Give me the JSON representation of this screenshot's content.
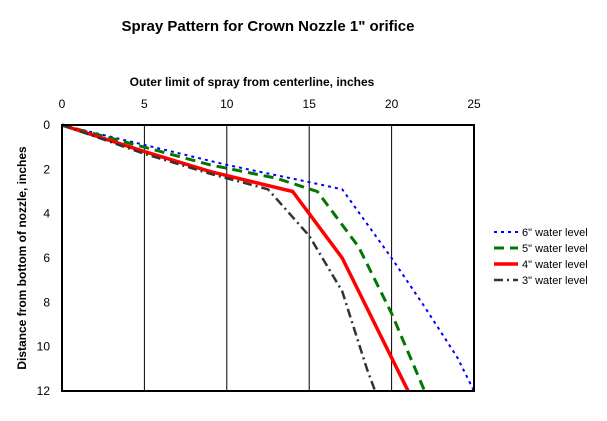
{
  "chart_data": {
    "type": "line",
    "title": "Spray Pattern for Crown Nozzle 1\" orifice",
    "xlabel": "Outer limit of spray from centerline, inches",
    "ylabel": "Distance from bottom of nozzle, inches",
    "xlim": [
      0,
      25
    ],
    "ylim": [
      0,
      12
    ],
    "y_inverted": true,
    "x_axis_position": "top",
    "grid": "vertical",
    "x_ticks": [
      "0",
      "5",
      "10",
      "15",
      "20",
      "25"
    ],
    "y_ticks": [
      "0",
      "2",
      "4",
      "6",
      "8",
      "10",
      "12"
    ],
    "legend_position": "right",
    "series": [
      {
        "name": "6\" water level",
        "color": "#0000ff",
        "dash": "dotted",
        "points": [
          [
            0,
            0
          ],
          [
            5,
            0.9
          ],
          [
            10,
            1.8
          ],
          [
            14.5,
            2.5
          ],
          [
            17,
            2.9
          ],
          [
            20,
            6
          ],
          [
            22,
            8.2
          ],
          [
            24,
            10.5
          ],
          [
            25,
            12
          ]
        ]
      },
      {
        "name": "5\" water level",
        "color": "#007700",
        "dash": "dashed",
        "points": [
          [
            0,
            0
          ],
          [
            5,
            1.0
          ],
          [
            9,
            1.8
          ],
          [
            13,
            2.4
          ],
          [
            15.5,
            3.0
          ],
          [
            18,
            5.5
          ],
          [
            20,
            8.5
          ],
          [
            22,
            12
          ]
        ]
      },
      {
        "name": "4\" water level",
        "color": "#ff0000",
        "dash": "solid",
        "points": [
          [
            0,
            0
          ],
          [
            5,
            1.2
          ],
          [
            9,
            2.1
          ],
          [
            14,
            3.0
          ],
          [
            15,
            4.0
          ],
          [
            17,
            6.0
          ],
          [
            19,
            9.0
          ],
          [
            21,
            12
          ]
        ]
      },
      {
        "name": "3\" water level",
        "color": "#333333",
        "dash": "dashdot",
        "points": [
          [
            0,
            0
          ],
          [
            5,
            1.3
          ],
          [
            9,
            2.2
          ],
          [
            12.5,
            2.9
          ],
          [
            15,
            5.0
          ],
          [
            17,
            7.5
          ],
          [
            18.5,
            11
          ],
          [
            19,
            12
          ]
        ]
      }
    ]
  }
}
